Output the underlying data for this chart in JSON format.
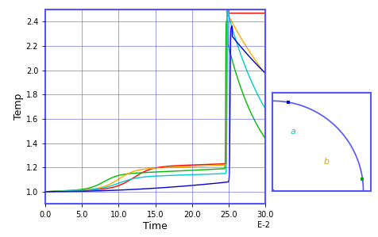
{
  "main_xlim": [
    0.0,
    30.0
  ],
  "main_ylim": [
    0.9,
    2.5
  ],
  "main_xticks": [
    0.0,
    5.0,
    10.0,
    15.0,
    20.0,
    25.0,
    30.0
  ],
  "main_yticks": [
    1.0,
    1.2,
    1.4,
    1.6,
    1.8,
    2.0,
    2.2,
    2.4
  ],
  "xlabel": "Time",
  "ylabel": "Temp",
  "xlabel2": "E-2",
  "border_color": "#5555ff",
  "grid_color": "#5555ff",
  "bg_color": "#ffffff",
  "line_colors": [
    "#ff0000",
    "#00bb00",
    "#ffaa00",
    "#00cccc",
    "#0000cc"
  ],
  "inset_border_color": "#5555ff",
  "inset_bg": "#ffffff",
  "inset_label_a_color": "#00cccc",
  "inset_label_b_color": "#ccaa00",
  "inset_point1_color": "#0000cc",
  "inset_point2_color": "#00aa00",
  "inset_point3_color": "#ff0000"
}
